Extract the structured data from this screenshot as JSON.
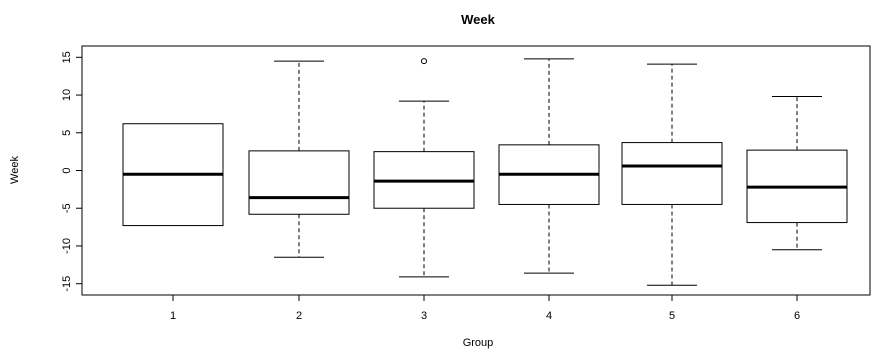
{
  "chart_data": {
    "type": "box",
    "title": "Week",
    "xlabel": "Group",
    "ylabel": "Week",
    "ylim": [
      -16.5,
      16.5
    ],
    "yticks": [
      -15,
      -10,
      -5,
      0,
      5,
      10,
      15
    ],
    "categories": [
      "1",
      "2",
      "3",
      "4",
      "5",
      "6"
    ],
    "boxes": [
      {
        "group": "1",
        "min": -7.3,
        "q1": -7.3,
        "median": -0.5,
        "q3": 6.2,
        "max": 6.2,
        "outliers": []
      },
      {
        "group": "2",
        "min": -11.5,
        "q1": -5.8,
        "median": -3.6,
        "q3": 2.6,
        "max": 14.5,
        "outliers": []
      },
      {
        "group": "3",
        "min": -14.1,
        "q1": -5.0,
        "median": -1.4,
        "q3": 2.5,
        "max": 9.2,
        "outliers": [
          14.5
        ]
      },
      {
        "group": "4",
        "min": -13.6,
        "q1": -4.5,
        "median": -0.5,
        "q3": 3.4,
        "max": 14.8,
        "outliers": []
      },
      {
        "group": "5",
        "min": -15.2,
        "q1": -4.5,
        "median": 0.6,
        "q3": 3.7,
        "max": 14.1,
        "outliers": []
      },
      {
        "group": "6",
        "min": -10.5,
        "q1": -6.9,
        "median": -2.2,
        "q3": 2.7,
        "max": 9.8,
        "outliers": []
      }
    ]
  }
}
